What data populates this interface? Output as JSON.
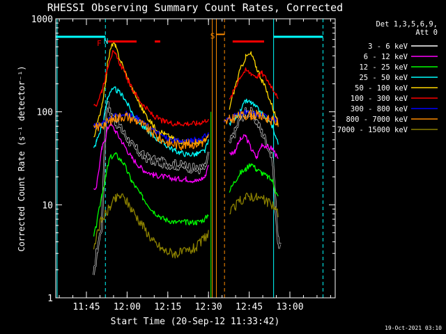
{
  "chart_data": {
    "type": "line",
    "title": "RHESSI Observing Summary Count Rates, Corrected",
    "xlabel": "Start Time (20-Sep-12 11:33:42)",
    "ylabel": "Corrected Count Rate (s⁻¹ detector⁻¹)",
    "x_unit": "minutes after 11:33:42",
    "xlim": [
      0,
      103
    ],
    "ylim": [
      1,
      1000
    ],
    "yscale": "log",
    "x_ticks": [
      {
        "label": "11:45",
        "x": 11.3
      },
      {
        "label": "12:00",
        "x": 26.3
      },
      {
        "label": "12:15",
        "x": 41.3
      },
      {
        "label": "12:30",
        "x": 56.3
      },
      {
        "label": "12:45",
        "x": 71.3
      },
      {
        "label": "13:00",
        "x": 86.3
      }
    ],
    "y_ticks": [
      {
        "label": "1",
        "y": 1
      },
      {
        "label": "10",
        "y": 10
      },
      {
        "label": "100",
        "y": 100
      },
      {
        "label": "1000",
        "y": 1000
      }
    ],
    "legend": {
      "placement": "right",
      "header": [
        "Det 1,3,5,6,9,",
        "Att 0"
      ]
    },
    "annotations": [
      {
        "label": "N",
        "x": 18.5,
        "y": 575,
        "color": "#00ffff"
      },
      {
        "label": "F",
        "x": 16.0,
        "y": 545,
        "color": "#ff0000"
      },
      {
        "label": "S",
        "x": 57.8,
        "y": 655,
        "color": "#ff8c00"
      }
    ],
    "markers": {
      "cyan_bars": [
        {
          "x0": 0,
          "x1": 18.3,
          "y": 640
        },
        {
          "x0": 80.3,
          "x1": 98.5,
          "y": 640
        }
      ],
      "red_bars": [
        {
          "x0": 18.5,
          "x1": 29.8,
          "y": 570
        },
        {
          "x0": 36.5,
          "x1": 38.5,
          "y": 570
        },
        {
          "x0": 65.2,
          "x1": 76.8,
          "y": 570
        }
      ],
      "orange_bar": {
        "x0": 59.2,
        "x1": 62.2,
        "y": 680
      },
      "cyan_solid": [
        0.5,
        80.3
      ],
      "cyan_dashed": [
        18.3,
        98.5
      ],
      "orange_solid": [
        57.7,
        59.2
      ],
      "orange_dashed": [
        62.2
      ],
      "green_solid": [
        57.2
      ]
    },
    "series": [
      {
        "name": "3 - 6 keV",
        "color": "#ffffff",
        "line_color": "#000000",
        "points": [
          [
            14,
            1.6
          ],
          [
            15,
            3
          ],
          [
            17,
            6
          ],
          [
            18.5,
            90
          ],
          [
            19,
            125
          ],
          [
            20,
            100
          ],
          [
            22,
            80
          ],
          [
            25,
            60
          ],
          [
            28,
            44
          ],
          [
            32,
            34
          ],
          [
            36,
            30
          ],
          [
            40,
            28
          ],
          [
            44,
            27
          ],
          [
            48,
            26
          ],
          [
            52,
            24
          ],
          [
            55,
            25
          ],
          [
            56.3,
            35
          ],
          [
            64,
            45
          ],
          [
            66,
            60
          ],
          [
            68,
            85
          ],
          [
            70,
            98
          ],
          [
            72,
            98
          ],
          [
            74,
            80
          ],
          [
            76,
            60
          ],
          [
            78,
            45
          ],
          [
            80,
            30
          ],
          [
            81,
            10
          ],
          [
            82,
            4
          ],
          [
            83,
            3.5
          ]
        ]
      },
      {
        "name": "6 - 12 keV",
        "color": "#ff00ff",
        "points": [
          [
            14,
            14
          ],
          [
            15,
            16
          ],
          [
            17,
            40
          ],
          [
            18.5,
            55
          ],
          [
            19,
            65
          ],
          [
            20,
            75
          ],
          [
            22,
            62
          ],
          [
            25,
            45
          ],
          [
            28,
            32
          ],
          [
            32,
            24
          ],
          [
            36,
            21
          ],
          [
            40,
            20
          ],
          [
            44,
            19
          ],
          [
            48,
            19
          ],
          [
            52,
            18
          ],
          [
            55,
            20
          ],
          [
            56.3,
            28
          ],
          [
            64,
            35
          ],
          [
            66,
            38
          ],
          [
            68,
            50
          ],
          [
            70,
            55
          ],
          [
            72,
            40
          ],
          [
            74,
            32
          ],
          [
            76,
            45
          ],
          [
            78,
            42
          ],
          [
            80,
            40
          ],
          [
            81,
            35
          ],
          [
            82,
            30
          ]
        ]
      },
      {
        "name": "12 - 25 keV",
        "color": "#00ff00",
        "points": [
          [
            14,
            4.5
          ],
          [
            15,
            6
          ],
          [
            17,
            13
          ],
          [
            18.5,
            20
          ],
          [
            19,
            25
          ],
          [
            20,
            32
          ],
          [
            22,
            35
          ],
          [
            25,
            28
          ],
          [
            28,
            18
          ],
          [
            32,
            12
          ],
          [
            36,
            8.5
          ],
          [
            40,
            7
          ],
          [
            44,
            6.5
          ],
          [
            48,
            6.5
          ],
          [
            52,
            6.5
          ],
          [
            55,
            7
          ],
          [
            56.3,
            8
          ],
          [
            64,
            14
          ],
          [
            66,
            18
          ],
          [
            68,
            22
          ],
          [
            70,
            24
          ],
          [
            72,
            28
          ],
          [
            74,
            24
          ],
          [
            76,
            22
          ],
          [
            78,
            20
          ],
          [
            80,
            18
          ],
          [
            81,
            14
          ],
          [
            82,
            12
          ]
        ]
      },
      {
        "name": "25 - 50 keV",
        "color": "#00ffff",
        "points": [
          [
            14,
            40
          ],
          [
            15,
            48
          ],
          [
            17,
            70
          ],
          [
            18.5,
            110
          ],
          [
            19,
            140
          ],
          [
            20,
            165
          ],
          [
            22,
            175
          ],
          [
            25,
            145
          ],
          [
            28,
            100
          ],
          [
            32,
            70
          ],
          [
            36,
            55
          ],
          [
            40,
            45
          ],
          [
            44,
            38
          ],
          [
            48,
            35
          ],
          [
            52,
            35
          ],
          [
            55,
            38
          ],
          [
            56.3,
            48
          ],
          [
            64,
            75
          ],
          [
            66,
            85
          ],
          [
            68,
            100
          ],
          [
            70,
            130
          ],
          [
            72,
            125
          ],
          [
            74,
            110
          ],
          [
            76,
            95
          ],
          [
            78,
            80
          ],
          [
            80,
            70
          ],
          [
            81,
            55
          ],
          [
            82,
            45
          ]
        ]
      },
      {
        "name": "50 - 100 keV",
        "color": "#ffd700",
        "points": [
          [
            14,
            55
          ],
          [
            15,
            65
          ],
          [
            17,
            120
          ],
          [
            18.5,
            220
          ],
          [
            19,
            320
          ],
          [
            20,
            450
          ],
          [
            21,
            540
          ],
          [
            22,
            500
          ],
          [
            24,
            350
          ],
          [
            26,
            250
          ],
          [
            28,
            180
          ],
          [
            32,
            105
          ],
          [
            36,
            70
          ],
          [
            40,
            58
          ],
          [
            44,
            50
          ],
          [
            48,
            47
          ],
          [
            52,
            46
          ],
          [
            55,
            48
          ],
          [
            56.3,
            55
          ],
          [
            64,
            110
          ],
          [
            66,
            180
          ],
          [
            68,
            280
          ],
          [
            70,
            390
          ],
          [
            72,
            420
          ],
          [
            74,
            300
          ],
          [
            76,
            220
          ],
          [
            78,
            160
          ],
          [
            80,
            110
          ],
          [
            81,
            90
          ],
          [
            82,
            70
          ]
        ]
      },
      {
        "name": "100 - 300 keV",
        "color": "#ff0000",
        "points": [
          [
            14,
            110
          ],
          [
            15,
            120
          ],
          [
            17,
            170
          ],
          [
            18.5,
            250
          ],
          [
            19,
            300
          ],
          [
            20,
            380
          ],
          [
            21,
            430
          ],
          [
            22,
            410
          ],
          [
            24,
            320
          ],
          [
            26,
            240
          ],
          [
            28,
            180
          ],
          [
            32,
            120
          ],
          [
            36,
            90
          ],
          [
            40,
            78
          ],
          [
            44,
            75
          ],
          [
            48,
            75
          ],
          [
            52,
            75
          ],
          [
            55,
            80
          ],
          [
            56.3,
            85
          ],
          [
            64,
            130
          ],
          [
            66,
            180
          ],
          [
            68,
            240
          ],
          [
            70,
            280
          ],
          [
            72,
            260
          ],
          [
            74,
            240
          ],
          [
            76,
            260
          ],
          [
            78,
            220
          ],
          [
            80,
            180
          ],
          [
            81,
            160
          ],
          [
            82,
            130
          ]
        ]
      },
      {
        "name": "300 - 800 keV",
        "color": "#0000ff",
        "points": [
          [
            14,
            70
          ],
          [
            15,
            70
          ],
          [
            17,
            75
          ],
          [
            20,
            85
          ],
          [
            23,
            92
          ],
          [
            26,
            95
          ],
          [
            30,
            85
          ],
          [
            34,
            70
          ],
          [
            38,
            58
          ],
          [
            42,
            50
          ],
          [
            46,
            48
          ],
          [
            50,
            49
          ],
          [
            54,
            52
          ],
          [
            56.3,
            58
          ],
          [
            62,
            80
          ],
          [
            64,
            85
          ],
          [
            66,
            90
          ],
          [
            68,
            95
          ],
          [
            70,
            98
          ],
          [
            72,
            97
          ],
          [
            74,
            95
          ],
          [
            76,
            92
          ],
          [
            78,
            88
          ],
          [
            80,
            85
          ],
          [
            82,
            80
          ]
        ]
      },
      {
        "name": "800 - 7000 keV",
        "color": "#ff8c00",
        "points": [
          [
            14,
            65
          ],
          [
            15,
            68
          ],
          [
            17,
            72
          ],
          [
            20,
            80
          ],
          [
            23,
            88
          ],
          [
            26,
            90
          ],
          [
            30,
            80
          ],
          [
            34,
            65
          ],
          [
            38,
            52
          ],
          [
            42,
            46
          ],
          [
            46,
            44
          ],
          [
            50,
            45
          ],
          [
            54,
            47
          ],
          [
            56.3,
            52
          ],
          [
            62,
            75
          ],
          [
            64,
            82
          ],
          [
            66,
            87
          ],
          [
            68,
            90
          ],
          [
            70,
            92
          ],
          [
            72,
            93
          ],
          [
            74,
            92
          ],
          [
            76,
            88
          ],
          [
            78,
            85
          ],
          [
            80,
            80
          ],
          [
            82,
            76
          ]
        ]
      },
      {
        "name": "7000 - 15000 keV",
        "color": "#8b8000",
        "points": [
          [
            14,
            3
          ],
          [
            15,
            5
          ],
          [
            17,
            7
          ],
          [
            18.5,
            8
          ],
          [
            20,
            9.5
          ],
          [
            22,
            11.5
          ],
          [
            24,
            12.5
          ],
          [
            26,
            11
          ],
          [
            28,
            9
          ],
          [
            32,
            6
          ],
          [
            36,
            4
          ],
          [
            40,
            3.2
          ],
          [
            44,
            3
          ],
          [
            48,
            3.1
          ],
          [
            52,
            3.5
          ],
          [
            55,
            4.5
          ],
          [
            56.3,
            5
          ],
          [
            64,
            8
          ],
          [
            66,
            9.5
          ],
          [
            68,
            11
          ],
          [
            70,
            12
          ],
          [
            72,
            12.5
          ],
          [
            74,
            12
          ],
          [
            76,
            11.5
          ],
          [
            78,
            10.5
          ],
          [
            80,
            10
          ],
          [
            81,
            9
          ],
          [
            82,
            8
          ]
        ]
      }
    ]
  },
  "footer": {
    "timestamp": "19-Oct-2021 03:10"
  }
}
